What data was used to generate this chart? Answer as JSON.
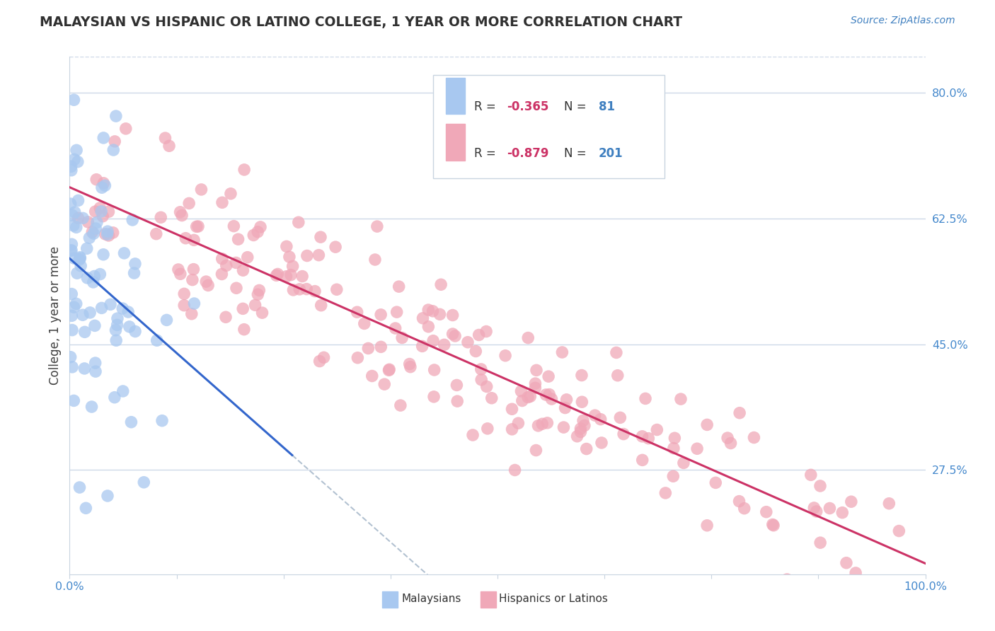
{
  "title": "MALAYSIAN VS HISPANIC OR LATINO COLLEGE, 1 YEAR OR MORE CORRELATION CHART",
  "source": "Source: ZipAtlas.com",
  "ylabel": "College, 1 year or more",
  "ytick_labels": [
    "27.5%",
    "45.0%",
    "62.5%",
    "80.0%"
  ],
  "ytick_values": [
    0.275,
    0.45,
    0.625,
    0.8
  ],
  "legend_label1": "Malaysians",
  "legend_label2": "Hispanics or Latinos",
  "r1": -0.365,
  "n1": 81,
  "r2": -0.879,
  "n2": 201,
  "color_blue": "#a8c8f0",
  "color_pink": "#f0a8b8",
  "color_line_blue": "#3366cc",
  "color_line_pink": "#cc3366",
  "color_title": "#303030",
  "color_source": "#4080c0",
  "color_axis_tick": "#4488cc",
  "xlim": [
    0.0,
    1.0
  ],
  "ylim": [
    0.13,
    0.85
  ],
  "bg_color": "#ffffff",
  "grid_color": "#cdd8e8",
  "dashed_line_color": "#aabbcc"
}
